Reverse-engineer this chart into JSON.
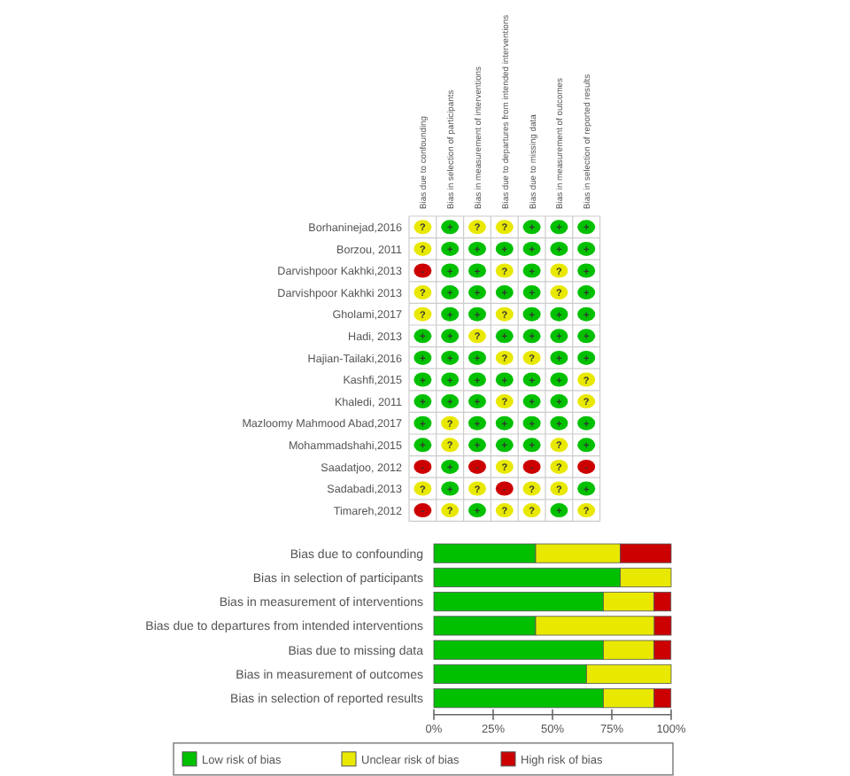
{
  "chart_data": [
    {
      "type": "heatmap",
      "categories": [
        "Bias due to confounding",
        "Bias in selection of participants",
        "Bias in measurement of interventions",
        "Bias due to departures from intended interventions",
        "Bias due to missing data",
        "Bias in measurement of outcomes",
        "Bias in selection of reported results"
      ],
      "y_categories": [
        "Borhaninejad,2016",
        "Borzou, 2011",
        "Darvishpoor Kakhki,2013",
        "Darvishpoor Kakhki 2013",
        "Gholami,2017",
        "Hadi, 2013",
        "Hajian-Tailaki,2016",
        "Kashfi,2015",
        "Khaledi, 2011",
        "Mazloomy Mahmood Abad,2017",
        "Mohammadshahi,2015",
        "Saadatjoo, 2012",
        "Sadabadi,2013",
        "Timareh,2012"
      ],
      "colors": [
        "#e8e800",
        "#00c000",
        "#cc0000"
      ],
      "cells": [
        [
          "?",
          "+",
          "?",
          "?",
          "+",
          "+",
          "+"
        ],
        [
          "?",
          "+",
          "+",
          "+",
          "+",
          "+",
          "+"
        ],
        [
          "-",
          "+",
          "+",
          "?",
          "+",
          "?",
          "+"
        ],
        [
          "?",
          "+",
          "+",
          "+",
          "+",
          "?",
          "+"
        ],
        [
          "?",
          "+",
          "+",
          "?",
          "+",
          "+",
          "+"
        ],
        [
          "+",
          "+",
          "?",
          "+",
          "+",
          "+",
          "+"
        ],
        [
          "+",
          "+",
          "+",
          "?",
          "?",
          "+",
          "+"
        ],
        [
          "+",
          "+",
          "+",
          "+",
          "+",
          "+",
          "?"
        ],
        [
          "+",
          "+",
          "+",
          "?",
          "+",
          "+",
          "?"
        ],
        [
          "+",
          "?",
          "+",
          "+",
          "+",
          "+",
          "+"
        ],
        [
          "+",
          "?",
          "+",
          "+",
          "+",
          "?",
          "+"
        ],
        [
          "-",
          "+",
          "-",
          "?",
          "-",
          "?",
          "-"
        ],
        [
          "?",
          "+",
          "?",
          "-",
          "?",
          "?",
          "+"
        ],
        [
          "-",
          "?",
          "+",
          "?",
          "?",
          "+",
          "?"
        ]
      ]
    },
    {
      "type": "bar",
      "orientation": "horizontal",
      "stacked": true,
      "categories": [
        "Bias due to confounding",
        "Bias in selection of participants",
        "Bias in measurement of interventions",
        "Bias due to departures from intended interventions",
        "Bias due to missing data",
        "Bias in measurement of outcomes",
        "Bias in selection of reported results"
      ],
      "series": [
        {
          "name": "Low risk of bias",
          "color": "#00c000",
          "values": [
            42.9,
            78.6,
            71.4,
            42.9,
            71.4,
            64.3,
            71.4
          ]
        },
        {
          "name": "Unclear risk of bias",
          "color": "#e8e800",
          "values": [
            35.7,
            21.4,
            21.4,
            50,
            21.4,
            35.7,
            21.4
          ]
        },
        {
          "name": "High risk of bias",
          "color": "#cc0000",
          "values": [
            21.4,
            0,
            7.1,
            7.1,
            7.1,
            0,
            7.1
          ]
        }
      ],
      "xlim": [
        0,
        100
      ],
      "xticks": [
        {
          "value": 0,
          "label": "0%"
        },
        {
          "value": 25,
          "label": "25%"
        },
        {
          "value": 50,
          "label": "50%"
        },
        {
          "value": 75,
          "label": "75%"
        },
        {
          "value": 100,
          "label": "100%"
        }
      ],
      "legend": "bottom"
    }
  ]
}
